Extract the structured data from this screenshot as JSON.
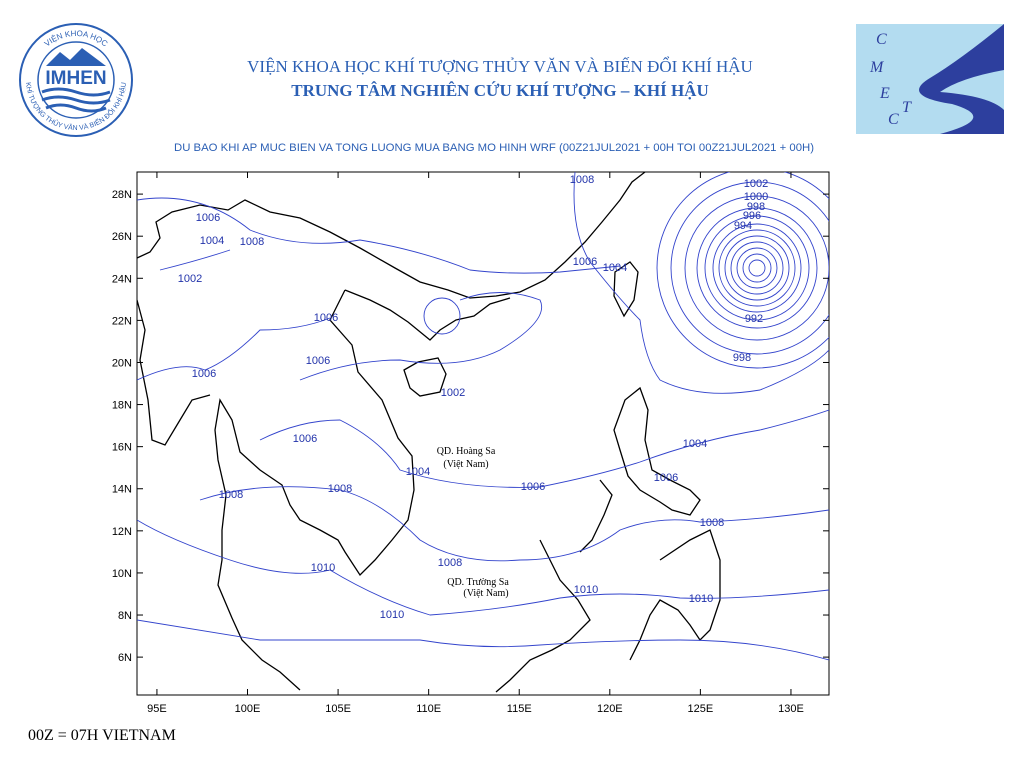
{
  "header": {
    "institute": "VIỆN KHOA HỌC KHÍ TƯỢNG THỦY VĂN VÀ BIẾN ĐỔI KHÍ HẬU",
    "center": "TRUNG TÂM NGHIÊN CỨU KHÍ TƯỢNG – KHÍ HẬU",
    "left_logo": {
      "text": "IMHEN",
      "ring_top": "VIỆN KHOA HỌC",
      "ring_bottom": "KHÍ TƯỢNG THỦY VĂN VÀ BIẾN ĐỔI KHÍ HẬU"
    },
    "right_logo": {
      "letters": [
        "C",
        "M",
        "E",
        "T",
        "C"
      ]
    }
  },
  "map": {
    "title": "DU BAO KHI AP MUC BIEN VA TONG LUONG MUA BANG MO HINH WRF (00Z21JUL2021 + 00H TOI 00Z21JUL2021 + 00H)",
    "xlim": [
      93.9,
      132.1
    ],
    "ylim": [
      4.2,
      29.05
    ],
    "xticks": [
      {
        "value": 95,
        "label": "95E"
      },
      {
        "value": 100,
        "label": "100E"
      },
      {
        "value": 105,
        "label": "105E"
      },
      {
        "value": 110,
        "label": "110E"
      },
      {
        "value": 115,
        "label": "115E"
      },
      {
        "value": 120,
        "label": "120E"
      },
      {
        "value": 125,
        "label": "125E"
      },
      {
        "value": 130,
        "label": "130E"
      }
    ],
    "yticks": [
      {
        "value": 6,
        "label": "6N"
      },
      {
        "value": 8,
        "label": "8N"
      },
      {
        "value": 10,
        "label": "10N"
      },
      {
        "value": 12,
        "label": "12N"
      },
      {
        "value": 14,
        "label": "14N"
      },
      {
        "value": 16,
        "label": "16N"
      },
      {
        "value": 18,
        "label": "18N"
      },
      {
        "value": 20,
        "label": "20N"
      },
      {
        "value": 22,
        "label": "22N"
      },
      {
        "value": 24,
        "label": "24N"
      },
      {
        "value": 26,
        "label": "26N"
      },
      {
        "value": 28,
        "label": "28N"
      }
    ],
    "contour_labels": [
      1008,
      1002,
      1000,
      998,
      996,
      994,
      992,
      998,
      1006,
      1004,
      1008,
      1002,
      1006,
      1004,
      1006,
      1006,
      1002,
      1006,
      1006,
      1004,
      1004,
      1006,
      1006,
      1008,
      1008,
      1008,
      1008,
      1010,
      1010,
      1010,
      1010
    ],
    "islands": [
      {
        "name": "QD. Hoàng Sa",
        "country": "(Việt Nam)"
      },
      {
        "name": "QD. Trường Sa",
        "country": "(Việt Nam)"
      }
    ]
  },
  "footer": "00Z = 07H VIETNAM"
}
